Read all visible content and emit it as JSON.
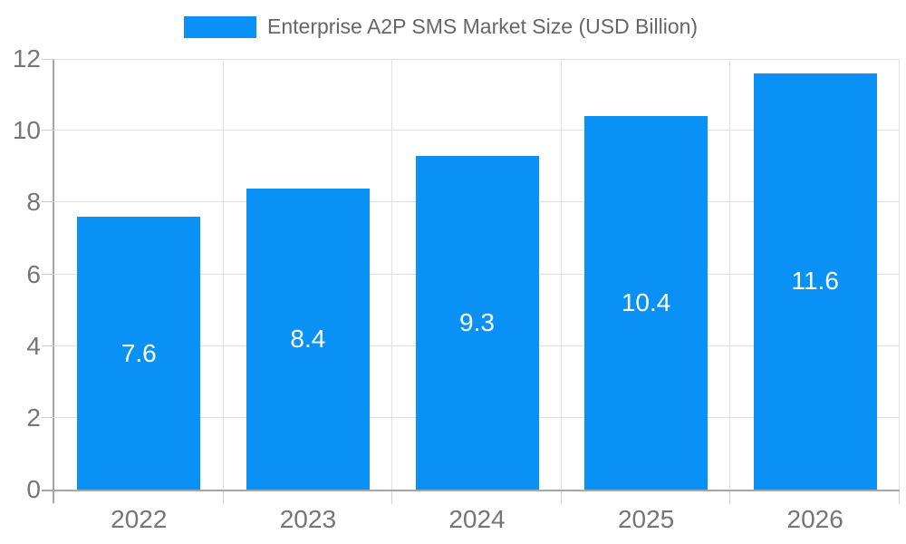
{
  "chart_data": {
    "type": "bar",
    "title": "Enterprise A2P SMS Market Size (USD Billion)",
    "categories": [
      "2022",
      "2023",
      "2024",
      "2025",
      "2026"
    ],
    "values": [
      7.6,
      8.4,
      9.3,
      10.4,
      11.6
    ],
    "data_labels": [
      "7.6",
      "8.4",
      "9.3",
      "10.4",
      "11.6"
    ],
    "xlabel": "",
    "ylabel": "",
    "ylim": [
      0,
      12
    ],
    "yticks": [
      0,
      2,
      4,
      6,
      8,
      10,
      12
    ],
    "grid": true,
    "legend_position": "top-center",
    "colors": {
      "bar": "#0991f5",
      "data_label": "#ffffff",
      "gridline": "#e0e0e0",
      "axis": "#a6a6a6",
      "tick_mark": "#cfcfcf",
      "tick_text": "#757575",
      "legend_text": "#666666"
    }
  }
}
